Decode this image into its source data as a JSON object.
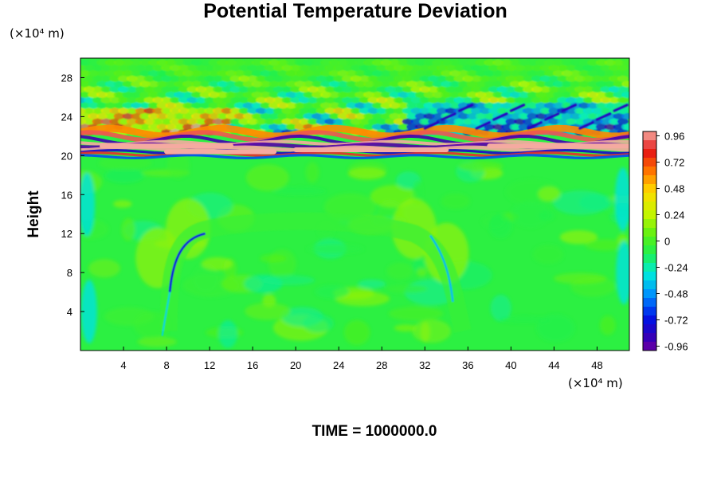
{
  "chart_data": {
    "type": "heatmap",
    "title": "Potential Temperature Deviation",
    "ylabel": "Height",
    "yunit": "(×10⁴ m)",
    "xunit": "(×10⁴ m)",
    "footer": "TIME = 1000000.0",
    "xlim": [
      0,
      51
    ],
    "ylim": [
      0,
      30
    ],
    "xticks": [
      "4",
      "8",
      "12",
      "16",
      "20",
      "24",
      "28",
      "32",
      "36",
      "40",
      "44",
      "48"
    ],
    "xtick_values": [
      4,
      8,
      12,
      16,
      20,
      24,
      28,
      32,
      36,
      40,
      44,
      48
    ],
    "yticks": [
      "4",
      "8",
      "12",
      "16",
      "20",
      "24",
      "28"
    ],
    "ytick_values": [
      4,
      8,
      12,
      16,
      20,
      24,
      28
    ],
    "colorbar": {
      "labels": [
        "0.96",
        "0.72",
        "0.48",
        "0.24",
        "0",
        "-0.24",
        "-0.48",
        "-0.72",
        "-0.96"
      ],
      "label_values": [
        0.96,
        0.72,
        0.48,
        0.24,
        0,
        -0.24,
        -0.48,
        -0.72,
        -0.96
      ],
      "range": [
        -1.0,
        1.0
      ],
      "levels": 25,
      "colormap": "rainbow (purple→blue→cyan→green→yellow→red→pink)"
    },
    "features": [
      {
        "description": "strong layered band of high-amplitude positive/negative deviation",
        "y_range": [
          20,
          22.5
        ],
        "x_range": [
          0,
          51
        ]
      },
      {
        "description": "gravity-wave ripples with moderate yellow/blue amplitude",
        "y_range": [
          22.5,
          30
        ],
        "x_range": [
          0,
          51
        ]
      },
      {
        "description": "dome-shaped cold-pool boundary (blue streaks at edges)",
        "x_range": [
          8,
          35
        ],
        "top_height": 14
      }
    ],
    "background_value": -0.08
  }
}
